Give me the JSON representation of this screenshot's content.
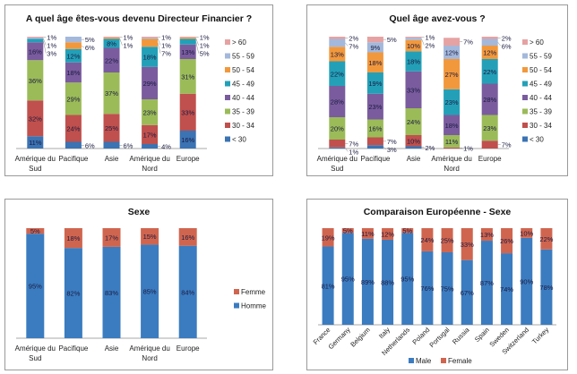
{
  "colors": {
    "lt30": "#3b73b3",
    "30-34": "#c0504d",
    "35-39": "#9bbb59",
    "40-44": "#7a5c9e",
    "45-49": "#23a0b8",
    "50-54": "#f2983c",
    "55-59": "#a3b8db",
    "gt60": "#e6a2a2",
    "male": "#3b7cc0",
    "female": "#d0654f"
  },
  "chart_data": [
    {
      "type": "bar",
      "stacked": true,
      "title": "A quel âge êtes-vous devenu Directeur Financier ?",
      "categories": [
        "Amérique du Sud",
        "Pacifique",
        "Asie",
        "Amérique du Nord",
        "Europe"
      ],
      "legend_position": "right",
      "series": [
        {
          "name": "< 30",
          "color_key": "lt30",
          "values": [
            11,
            6,
            6,
            4,
            16
          ]
        },
        {
          "name": "30 - 34",
          "color_key": "30-34",
          "values": [
            32,
            24,
            25,
            17,
            33
          ]
        },
        {
          "name": "35 - 39",
          "color_key": "35-39",
          "values": [
            36,
            29,
            37,
            23,
            31
          ]
        },
        {
          "name": "40 - 44",
          "color_key": "40-44",
          "values": [
            16,
            18,
            22,
            29,
            13
          ]
        },
        {
          "name": "45 - 49",
          "color_key": "45-49",
          "values": [
            3,
            12,
            8,
            18,
            5
          ]
        },
        {
          "name": "50 - 54",
          "color_key": "50-54",
          "values": [
            0,
            6,
            1,
            7,
            1
          ]
        },
        {
          "name": "55 - 59",
          "color_key": "55-59",
          "values": [
            1,
            5,
            0,
            1,
            0
          ]
        },
        {
          "name": "> 60",
          "color_key": "gt60",
          "values": [
            1,
            0,
            1,
            1,
            1
          ]
        }
      ]
    },
    {
      "type": "bar",
      "stacked": true,
      "title": "Quel âge avez-vous ?",
      "categories": [
        "Amérique du Sud",
        "Pacifique",
        "Asie",
        "Amérique du Nord",
        "Europe"
      ],
      "legend_position": "right",
      "series": [
        {
          "name": "< 30",
          "color_key": "lt30",
          "values": [
            1,
            3,
            2,
            0,
            0
          ]
        },
        {
          "name": "30 - 34",
          "color_key": "30-34",
          "values": [
            7,
            7,
            10,
            1,
            7
          ]
        },
        {
          "name": "35 - 39",
          "color_key": "35-39",
          "values": [
            20,
            16,
            24,
            11,
            23
          ]
        },
        {
          "name": "40 - 44",
          "color_key": "40-44",
          "values": [
            28,
            23,
            33,
            18,
            28
          ]
        },
        {
          "name": "45 - 49",
          "color_key": "45-49",
          "values": [
            22,
            19,
            18,
            23,
            22
          ]
        },
        {
          "name": "50 - 54",
          "color_key": "50-54",
          "values": [
            13,
            18,
            10,
            27,
            12
          ]
        },
        {
          "name": "55 - 59",
          "color_key": "55-59",
          "values": [
            7,
            9,
            2,
            12,
            6
          ]
        },
        {
          "name": "> 60",
          "color_key": "gt60",
          "values": [
            2,
            5,
            1,
            7,
            2
          ]
        }
      ]
    },
    {
      "type": "bar",
      "stacked": true,
      "title": "Sexe",
      "categories": [
        "Amérique du Sud",
        "Pacifique",
        "Asie",
        "Amérique du Nord",
        "Europe"
      ],
      "legend_position": "right",
      "series": [
        {
          "name": "Homme",
          "color_key": "male",
          "values": [
            95,
            82,
            83,
            85,
            84
          ]
        },
        {
          "name": "Femme",
          "color_key": "female",
          "values": [
            5,
            18,
            17,
            15,
            16
          ]
        }
      ]
    },
    {
      "type": "bar",
      "stacked": true,
      "title": "Comparaison Européenne - Sexe",
      "categories": [
        "France",
        "Germany",
        "Belgium",
        "Italy",
        "Netherlands",
        "Poland",
        "Portugal",
        "Russia",
        "Spain",
        "Sweden",
        "Switzerland",
        "Turkey"
      ],
      "legend_position": "bottom",
      "series": [
        {
          "name": "Male",
          "color_key": "male",
          "values": [
            81,
            95,
            89,
            88,
            95,
            76,
            75,
            67,
            87,
            74,
            90,
            78
          ]
        },
        {
          "name": "Female",
          "color_key": "female",
          "values": [
            19,
            5,
            11,
            12,
            5,
            24,
            25,
            33,
            13,
            26,
            10,
            22
          ]
        }
      ]
    }
  ]
}
